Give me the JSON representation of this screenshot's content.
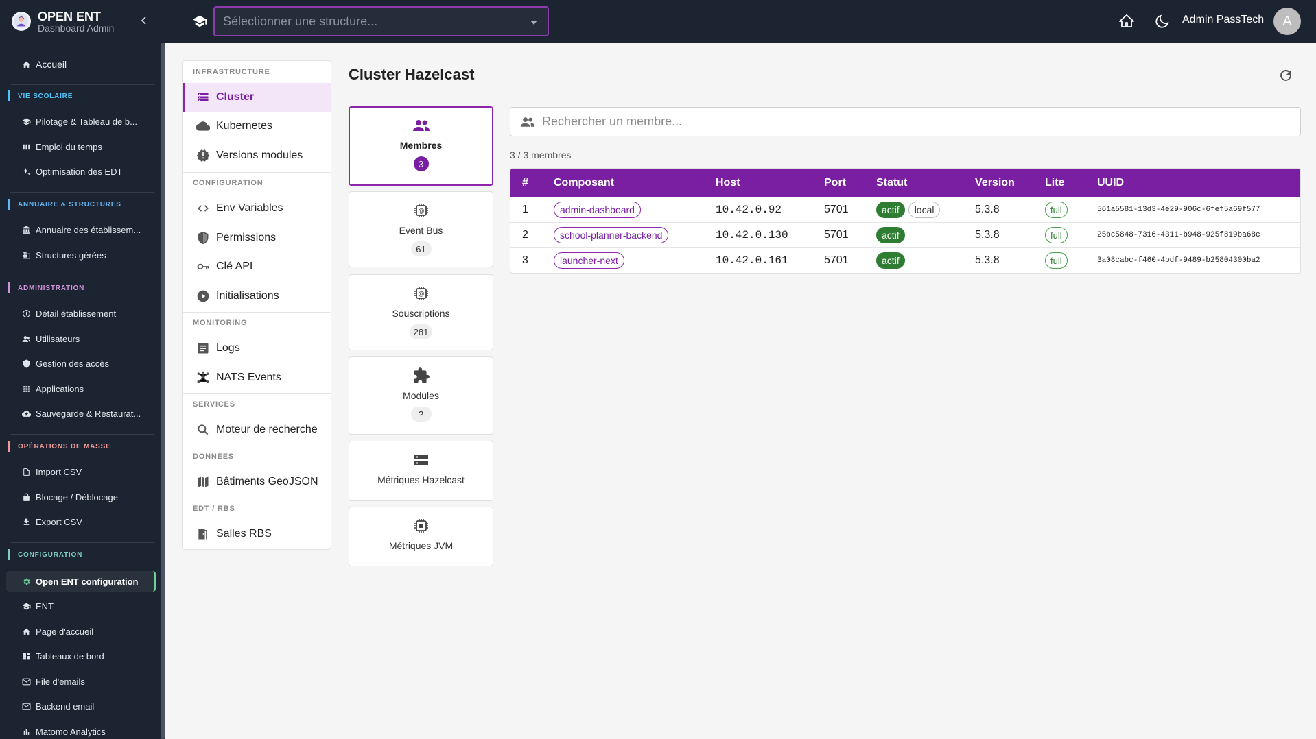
{
  "brand": {
    "title": "OPEN ENT",
    "subtitle": "Dashboard Admin"
  },
  "sidebar": {
    "home": "Accueil",
    "sections": [
      {
        "title": "VIE SCOLAIRE",
        "color": "#4fc3f7",
        "items": [
          "Pilotage & Tableau de b...",
          "Emploi du temps",
          "Optimisation des EDT"
        ]
      },
      {
        "title": "ANNUAIRE & STRUCTURES",
        "color": "#64b5f6",
        "items": [
          "Annuaire des établissem...",
          "Structures gérées"
        ]
      },
      {
        "title": "ADMINISTRATION",
        "color": "#ce93d8",
        "items": [
          "Détail établissement",
          "Utilisateurs",
          "Gestion des accès",
          "Applications",
          "Sauvegarde & Restaurat..."
        ]
      },
      {
        "title": "OPÉRATIONS DE MASSE",
        "color": "#ef9a9a",
        "items": [
          "Import CSV",
          "Blocage / Déblocage",
          "Export CSV"
        ]
      },
      {
        "title": "CONFIGURATION",
        "color": "#80cbc4",
        "items": [
          "Open ENT configuration",
          "ENT",
          "Page d'accueil",
          "Tableaux de bord",
          "File d'emails",
          "Backend email",
          "Matomo Analytics"
        ]
      }
    ]
  },
  "topbar": {
    "structure_placeholder": "Sélectionner une structure...",
    "user_name": "Admin PassTech",
    "avatar_letter": "A"
  },
  "subnav": {
    "groups": [
      {
        "title": "INFRASTRUCTURE",
        "items": [
          "Cluster",
          "Kubernetes",
          "Versions modules"
        ]
      },
      {
        "title": "CONFIGURATION",
        "items": [
          "Env Variables",
          "Permissions",
          "Clé API",
          "Initialisations"
        ]
      },
      {
        "title": "MONITORING",
        "items": [
          "Logs",
          "NATS Events"
        ]
      },
      {
        "title": "SERVICES",
        "items": [
          "Moteur de recherche"
        ]
      },
      {
        "title": "DONNÉES",
        "items": [
          "Bâtiments GeoJSON"
        ]
      },
      {
        "title": "EDT / RBS",
        "items": [
          "Salles RBS"
        ]
      }
    ]
  },
  "main": {
    "title": "Cluster Hazelcast",
    "cards": [
      {
        "label": "Membres",
        "count": "3",
        "icon": "group-icon"
      },
      {
        "label": "Event Bus",
        "count": "61",
        "icon": "memory-icon"
      },
      {
        "label": "Souscriptions",
        "count": "281",
        "icon": "memory-icon"
      },
      {
        "label": "Modules",
        "count": "?",
        "icon": "puzzle-icon"
      },
      {
        "label": "Métriques Hazelcast",
        "icon": "storage-icon"
      },
      {
        "label": "Métriques JVM",
        "icon": "cpu-icon"
      }
    ],
    "search_placeholder": "Rechercher un membre...",
    "member_count": "3 / 3 membres",
    "table": {
      "headers": [
        "#",
        "Composant",
        "Host",
        "Port",
        "Statut",
        "Version",
        "Lite",
        "UUID"
      ],
      "rows": [
        {
          "n": "1",
          "component": "admin-dashboard",
          "host": "10.42.0.92",
          "port": "5701",
          "status": "actif",
          "local": "local",
          "version": "5.3.8",
          "lite": "full",
          "uuid": "561a5581-13d3-4e29-906c-6fef5a69f577"
        },
        {
          "n": "2",
          "component": "school-planner-backend",
          "host": "10.42.0.130",
          "port": "5701",
          "status": "actif",
          "version": "5.3.8",
          "lite": "full",
          "uuid": "25bc5848-7316-4311-b948-925f819ba68c"
        },
        {
          "n": "3",
          "component": "launcher-next",
          "host": "10.42.0.161",
          "port": "5701",
          "status": "actif",
          "version": "5.3.8",
          "lite": "full",
          "uuid": "3a08cabc-f460-4bdf-9489-b25804300ba2"
        }
      ]
    }
  },
  "colors": {
    "accent": "#7b1fa2",
    "sidebar_bg": "#1c2431",
    "success": "#2e7d32"
  }
}
